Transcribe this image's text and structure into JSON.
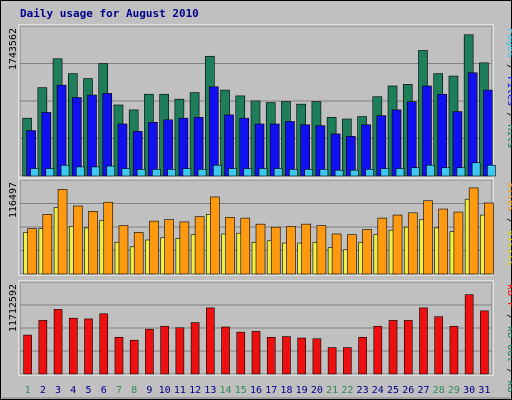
{
  "chart_data": {
    "type": "bar",
    "title": "Daily usage for August 2010",
    "colors": {
      "hits": "#1e7e5a",
      "files": "#1010f0",
      "pages": "#3ec8f0",
      "visits": "#f0f040",
      "sites": "#ff9a10",
      "kbin": "#ee1010",
      "text_dark": "#00008b",
      "weekend": "#2e8b57"
    },
    "days": [
      "1",
      "2",
      "3",
      "4",
      "5",
      "6",
      "7",
      "8",
      "9",
      "10",
      "11",
      "12",
      "13",
      "14",
      "15",
      "16",
      "17",
      "18",
      "19",
      "20",
      "21",
      "22",
      "23",
      "24",
      "25",
      "26",
      "27",
      "28",
      "29",
      "30",
      "31"
    ],
    "weekend_days": [
      "1",
      "7",
      "8",
      "14",
      "15",
      "21",
      "22",
      "28",
      "29"
    ],
    "panels": [
      {
        "ylabel": "1743562",
        "ymax": 1743562,
        "legend": [
          {
            "text": "Hits",
            "color": "#1e7e5a"
          },
          {
            "text": " / ",
            "color": "#000000"
          },
          {
            "text": "Files",
            "color": "#1010f0"
          },
          {
            "text": " / ",
            "color": "#000000"
          },
          {
            "text": "Pages",
            "color": "#3ec8f0"
          }
        ],
        "series": [
          {
            "key": "hits",
            "values": [
              700000,
              1070000,
              1420000,
              1240000,
              1180000,
              1360000,
              860000,
              800000,
              990000,
              990000,
              930000,
              1010000,
              1450000,
              1040000,
              970000,
              910000,
              890000,
              900000,
              870000,
              900000,
              710000,
              690000,
              720000,
              960000,
              1090000,
              1110000,
              1520000,
              1240000,
              1210000,
              1710000,
              1370000
            ]
          },
          {
            "key": "files",
            "values": [
              550000,
              770000,
              1100000,
              950000,
              980000,
              1000000,
              630000,
              540000,
              650000,
              680000,
              700000,
              710000,
              1080000,
              740000,
              700000,
              630000,
              630000,
              660000,
              620000,
              610000,
              510000,
              480000,
              620000,
              730000,
              800000,
              900000,
              1090000,
              990000,
              780000,
              1250000,
              1040000
            ]
          },
          {
            "key": "pages",
            "values": [
              90000,
              90000,
              130000,
              110000,
              110000,
              120000,
              90000,
              80000,
              80000,
              80000,
              90000,
              80000,
              130000,
              90000,
              90000,
              90000,
              90000,
              80000,
              80000,
              80000,
              70000,
              70000,
              80000,
              90000,
              90000,
              100000,
              130000,
              100000,
              100000,
              160000,
              130000
            ]
          }
        ]
      },
      {
        "ylabel": "116497",
        "ymax": 116497,
        "legend": [
          {
            "text": "Visits",
            "color": "#d8d800"
          },
          {
            "text": " / ",
            "color": "#000000"
          },
          {
            "text": "Sites",
            "color": "#ff9a10"
          }
        ],
        "series": [
          {
            "key": "visits",
            "values": [
              55000,
              60000,
              88000,
              63000,
              61000,
              71000,
              42000,
              36000,
              45000,
              48000,
              47000,
              52000,
              79000,
              53000,
              54000,
              42000,
              44000,
              41000,
              41000,
              42000,
              35000,
              32000,
              42000,
              52000,
              58000,
              62000,
              72000,
              61000,
              56000,
              99000,
              78000
            ]
          },
          {
            "key": "sites",
            "values": [
              60000,
              79000,
              112000,
              90000,
              83000,
              95000,
              64000,
              55000,
              70000,
              72000,
              69000,
              76000,
              102000,
              75000,
              74000,
              66000,
              62000,
              63000,
              66000,
              64000,
              53000,
              52000,
              59000,
              74000,
              78000,
              81000,
              97000,
              86000,
              82000,
              114000,
              94000
            ]
          }
        ]
      },
      {
        "ylabel": "11712592",
        "ymax": 11712592,
        "legend": [
          {
            "text": "kB In",
            "color": "#1e7e5a"
          },
          {
            "text": " / ",
            "color": "#000000"
          },
          {
            "text": "kB Out",
            "color": "#1e7e5a"
          },
          {
            "text": " / ",
            "color": "#000000"
          },
          {
            "text": "kB F",
            "color": "#ee1010"
          }
        ],
        "series": [
          {
            "key": "kbin",
            "values": [
              5300000,
              7300000,
              8800000,
              7600000,
              7500000,
              8200000,
              5000000,
              4600000,
              6100000,
              6500000,
              6300000,
              7000000,
              9000000,
              6400000,
              5700000,
              5800000,
              5000000,
              5100000,
              4900000,
              4800000,
              3600000,
              3600000,
              5000000,
              6500000,
              7300000,
              7300000,
              9000000,
              7800000,
              6500000,
              10800000,
              8600000
            ]
          }
        ]
      }
    ]
  }
}
